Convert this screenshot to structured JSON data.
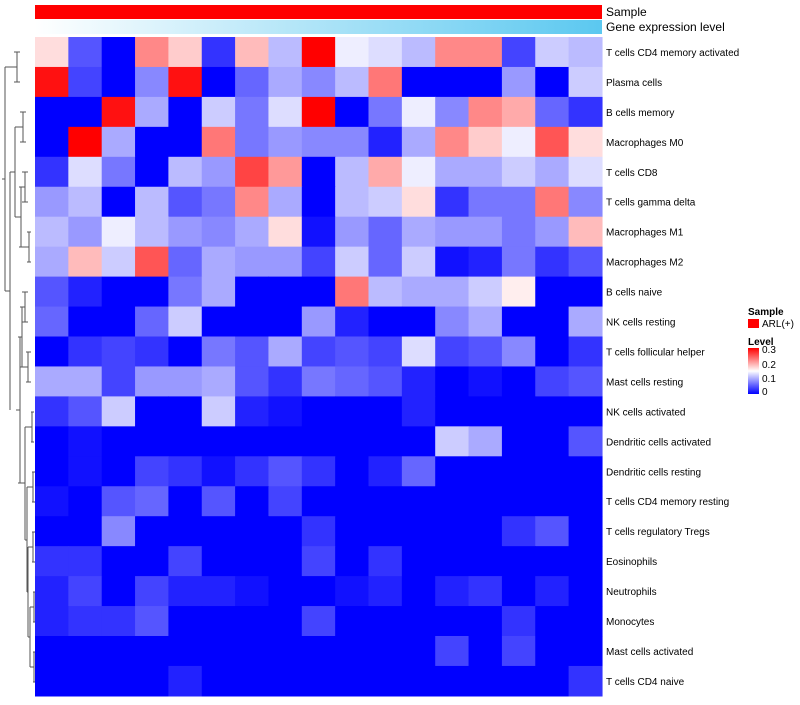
{
  "chart_data": {
    "type": "heatmap",
    "title": "",
    "annotation_bars": [
      {
        "label": "Sample",
        "color": "#ff0000"
      },
      {
        "label": "Gene expression level",
        "color_low": "#ffffff",
        "color_high": "#5bc8f0"
      }
    ],
    "legend": {
      "sample_title": "Sample",
      "sample_entries": [
        {
          "label": "ARL(+)",
          "color": "#ff0000"
        }
      ],
      "level_title": "Level",
      "level_ticks": [
        "0.3",
        "0.2",
        "0.1",
        "0"
      ],
      "level_min": 0,
      "level_max": 0.3,
      "colors": {
        "low": "#0000ff",
        "mid": "#ffffff",
        "high": "#ff0000"
      }
    },
    "rows": [
      "T cells CD4 memory activated",
      "Plasma cells",
      "B cells memory",
      "Macrophages M0",
      "T cells CD8",
      "T cells gamma delta",
      "Macrophages M1",
      "Macrophages M2",
      "B cells naive",
      "NK cells resting",
      "T cells follicular helper",
      "Mast cells resting",
      "NK cells activated",
      "Dendritic cells activated",
      "Dendritic cells resting",
      "T cells CD4 memory resting",
      "T cells regulatory  Tregs",
      "Eosinophils",
      "Neutrophils",
      "Monocytes",
      "Mast cells activated",
      "T cells CD4 naive"
    ],
    "values": [
      [
        0.17,
        0.05,
        0.0,
        0.22,
        0.18,
        0.03,
        0.19,
        0.11,
        0.3,
        0.14,
        0.13,
        0.11,
        0.22,
        0.22,
        0.04,
        0.12,
        0.11
      ],
      [
        0.29,
        0.04,
        0.0,
        0.08,
        0.29,
        0.0,
        0.06,
        0.1,
        0.08,
        0.11,
        0.23,
        0.0,
        0.0,
        0.0,
        0.09,
        0.0,
        0.12
      ],
      [
        0.0,
        0.0,
        0.29,
        0.1,
        0.0,
        0.12,
        0.07,
        0.13,
        0.3,
        0.0,
        0.07,
        0.14,
        0.08,
        0.22,
        0.2,
        0.06,
        0.03
      ],
      [
        0.0,
        0.3,
        0.1,
        0.0,
        0.0,
        0.23,
        0.07,
        0.09,
        0.08,
        0.08,
        0.02,
        0.1,
        0.22,
        0.18,
        0.14,
        0.25,
        0.17
      ],
      [
        0.03,
        0.13,
        0.07,
        0.0,
        0.11,
        0.09,
        0.26,
        0.21,
        0.0,
        0.11,
        0.2,
        0.14,
        0.1,
        0.1,
        0.12,
        0.1,
        0.13
      ],
      [
        0.09,
        0.11,
        0.0,
        0.11,
        0.05,
        0.07,
        0.22,
        0.1,
        0.0,
        0.11,
        0.12,
        0.17,
        0.03,
        0.07,
        0.07,
        0.23,
        0.08
      ],
      [
        0.11,
        0.09,
        0.14,
        0.11,
        0.09,
        0.08,
        0.1,
        0.17,
        0.01,
        0.09,
        0.06,
        0.1,
        0.09,
        0.09,
        0.07,
        0.09,
        0.19
      ],
      [
        0.1,
        0.19,
        0.12,
        0.25,
        0.06,
        0.1,
        0.09,
        0.09,
        0.04,
        0.12,
        0.06,
        0.12,
        0.01,
        0.02,
        0.07,
        0.03,
        0.05
      ],
      [
        0.05,
        0.02,
        0.0,
        0.0,
        0.07,
        0.1,
        0.0,
        0.0,
        0.0,
        0.23,
        0.11,
        0.1,
        0.1,
        0.12,
        0.16,
        0.0,
        0.0
      ],
      [
        0.06,
        0.0,
        0.0,
        0.06,
        0.12,
        0.0,
        0.0,
        0.0,
        0.09,
        0.02,
        0.0,
        0.0,
        0.08,
        0.1,
        0.0,
        0.0,
        0.1
      ],
      [
        0.0,
        0.03,
        0.04,
        0.03,
        0.0,
        0.07,
        0.05,
        0.1,
        0.04,
        0.05,
        0.04,
        0.13,
        0.04,
        0.05,
        0.08,
        0.0,
        0.03
      ],
      [
        0.1,
        0.1,
        0.04,
        0.09,
        0.09,
        0.1,
        0.05,
        0.03,
        0.07,
        0.06,
        0.05,
        0.02,
        0.0,
        0.01,
        0.0,
        0.04,
        0.05
      ],
      [
        0.03,
        0.05,
        0.12,
        0.0,
        0.0,
        0.12,
        0.02,
        0.01,
        0.0,
        0.0,
        0.0,
        0.02,
        0.0,
        0.0,
        0.0,
        0.0,
        0.0
      ],
      [
        0.0,
        0.01,
        0.0,
        0.0,
        0.0,
        0.0,
        0.0,
        0.0,
        0.0,
        0.0,
        0.0,
        0.0,
        0.12,
        0.1,
        0.0,
        0.0,
        0.05
      ],
      [
        0.0,
        0.01,
        0.0,
        0.04,
        0.03,
        0.01,
        0.03,
        0.05,
        0.03,
        0.0,
        0.02,
        0.06,
        0.0,
        0.0,
        0.0,
        0.0,
        0.0
      ],
      [
        0.01,
        0.0,
        0.05,
        0.06,
        0.0,
        0.05,
        0.0,
        0.04,
        0.0,
        0.0,
        0.0,
        0.0,
        0.0,
        0.0,
        0.0,
        0.0,
        0.0
      ],
      [
        0.0,
        0.0,
        0.08,
        0.0,
        0.0,
        0.0,
        0.0,
        0.0,
        0.03,
        0.0,
        0.0,
        0.0,
        0.0,
        0.0,
        0.03,
        0.05,
        0.0
      ],
      [
        0.03,
        0.03,
        0.0,
        0.0,
        0.04,
        0.0,
        0.0,
        0.0,
        0.04,
        0.0,
        0.03,
        0.0,
        0.0,
        0.0,
        0.0,
        0.0,
        0.0
      ],
      [
        0.02,
        0.04,
        0.0,
        0.04,
        0.02,
        0.02,
        0.01,
        0.0,
        0.0,
        0.01,
        0.02,
        0.0,
        0.02,
        0.03,
        0.0,
        0.02,
        0.0
      ],
      [
        0.02,
        0.03,
        0.03,
        0.05,
        0.0,
        0.0,
        0.0,
        0.0,
        0.04,
        0.0,
        0.0,
        0.0,
        0.0,
        0.0,
        0.03,
        0.0,
        0.0
      ],
      [
        0.0,
        0.0,
        0.0,
        0.0,
        0.0,
        0.0,
        0.0,
        0.0,
        0.0,
        0.0,
        0.0,
        0.0,
        0.04,
        0.0,
        0.04,
        0.0,
        0.0
      ],
      [
        0.0,
        0.0,
        0.0,
        0.0,
        0.02,
        0.0,
        0.0,
        0.0,
        0.0,
        0.0,
        0.0,
        0.0,
        0.0,
        0.0,
        0.0,
        0.0,
        0.03
      ]
    ]
  }
}
